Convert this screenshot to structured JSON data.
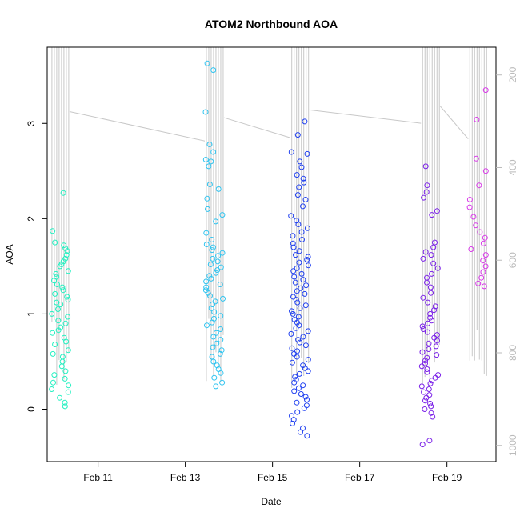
{
  "chart_data": {
    "type": "scatter",
    "title": "ATOM2 Northbound AOA",
    "xlabel": "Date",
    "ylabel": "AOA",
    "xlim": [
      "2014-02-09T20:00",
      "2014-02-20T03:00"
    ],
    "ylim": [
      -0.55,
      3.8
    ],
    "x_ticks": [
      {
        "value": "2014-02-11",
        "label": "Feb 11"
      },
      {
        "value": "2014-02-13",
        "label": "Feb 13"
      },
      {
        "value": "2014-02-15",
        "label": "Feb 15"
      },
      {
        "value": "2014-02-17",
        "label": "Feb 17"
      },
      {
        "value": "2014-02-19",
        "label": "Feb 19"
      }
    ],
    "y_ticks": [
      0,
      1,
      2,
      3
    ],
    "right_axis": {
      "label": "",
      "lim": [
        1035,
        140
      ],
      "ticks": [
        200,
        400,
        600,
        800,
        1000
      ]
    },
    "grid": false,
    "legend": "none",
    "colors": {
      "pressure_line": "#c8c8c8",
      "right_axis": "#bbbbbb",
      "group_colors": [
        "#22f0c0",
        "#30c4f0",
        "#2040f0",
        "#7a20e8",
        "#d838e8"
      ]
    },
    "flights": [
      {
        "time": "2014-02-10T03:00",
        "color": "#22f0c0",
        "aoa_values": [
          2.27,
          1.87,
          1.75,
          1.72,
          1.69,
          1.66,
          1.62,
          1.58,
          1.55,
          1.52,
          1.5,
          1.45,
          1.42,
          1.39,
          1.35,
          1.31,
          1.28,
          1.25,
          1.21,
          1.18,
          1.15,
          1.12,
          1.1,
          1.05,
          1.0,
          0.97,
          0.93,
          0.9,
          0.86,
          0.83,
          0.8,
          0.75,
          0.71,
          0.68,
          0.62,
          0.58,
          0.55,
          0.5,
          0.45,
          0.4,
          0.36,
          0.32,
          0.28,
          0.25,
          0.21,
          0.18,
          0.12,
          0.07,
          0.03
        ]
      },
      {
        "time": "2014-02-13T16:00",
        "color": "#30c4f0",
        "aoa_values": [
          3.63,
          3.56,
          3.12,
          2.78,
          2.7,
          2.62,
          2.6,
          2.55,
          2.36,
          2.31,
          2.21,
          2.1,
          2.04,
          1.97,
          1.85,
          1.78,
          1.73,
          1.7,
          1.67,
          1.64,
          1.61,
          1.58,
          1.55,
          1.52,
          1.49,
          1.46,
          1.43,
          1.4,
          1.37,
          1.34,
          1.31,
          1.28,
          1.25,
          1.22,
          1.19,
          1.16,
          1.13,
          1.1,
          1.06,
          1.02,
          0.98,
          0.95,
          0.91,
          0.88,
          0.84,
          0.8,
          0.76,
          0.73,
          0.69,
          0.65,
          0.62,
          0.58,
          0.55,
          0.5,
          0.46,
          0.42,
          0.38,
          0.33,
          0.28,
          0.24
        ]
      },
      {
        "time": "2014-02-15T15:00",
        "color": "#2040f0",
        "aoa_values": [
          3.02,
          2.88,
          2.7,
          2.68,
          2.6,
          2.54,
          2.46,
          2.42,
          2.38,
          2.33,
          2.25,
          2.2,
          2.13,
          2.03,
          1.98,
          1.94,
          1.9,
          1.86,
          1.82,
          1.78,
          1.74,
          1.7,
          1.66,
          1.62,
          1.6,
          1.57,
          1.54,
          1.51,
          1.48,
          1.45,
          1.42,
          1.39,
          1.36,
          1.33,
          1.3,
          1.27,
          1.24,
          1.21,
          1.18,
          1.15,
          1.12,
          1.09,
          1.06,
          1.03,
          1.0,
          0.97,
          0.94,
          0.91,
          0.88,
          0.85,
          0.82,
          0.79,
          0.76,
          0.73,
          0.7,
          0.67,
          0.64,
          0.61,
          0.58,
          0.55,
          0.52,
          0.49,
          0.46,
          0.43,
          0.4,
          0.37,
          0.34,
          0.31,
          0.28,
          0.25,
          0.22,
          0.19,
          0.16,
          0.13,
          0.1,
          0.07,
          0.04,
          0.01,
          -0.03,
          -0.07,
          -0.11,
          -0.15,
          -0.2,
          -0.24,
          -0.28
        ]
      },
      {
        "time": "2014-02-18T15:00",
        "color": "#7a20e8",
        "aoa_values": [
          2.55,
          2.35,
          2.28,
          2.22,
          2.08,
          2.04,
          1.75,
          1.7,
          1.65,
          1.62,
          1.58,
          1.53,
          1.48,
          1.42,
          1.38,
          1.33,
          1.28,
          1.22,
          1.17,
          1.12,
          1.08,
          1.04,
          1.0,
          0.96,
          0.93,
          0.9,
          0.87,
          0.84,
          0.81,
          0.78,
          0.75,
          0.72,
          0.69,
          0.66,
          0.63,
          0.6,
          0.57,
          0.54,
          0.51,
          0.48,
          0.45,
          0.42,
          0.39,
          0.36,
          0.33,
          0.3,
          0.27,
          0.24,
          0.21,
          0.18,
          0.15,
          0.12,
          0.09,
          0.06,
          0.03,
          0.0,
          -0.04,
          -0.08,
          -0.33,
          -0.37
        ]
      },
      {
        "time": "2014-02-19T17:00",
        "color": "#d838e8",
        "aoa_values": [
          3.35,
          3.04,
          2.63,
          2.5,
          2.35,
          2.2,
          2.12,
          2.02,
          1.93,
          1.86,
          1.8,
          1.74,
          1.68,
          1.62,
          1.56,
          1.5,
          1.44,
          1.38,
          1.32,
          1.29
        ]
      }
    ]
  }
}
